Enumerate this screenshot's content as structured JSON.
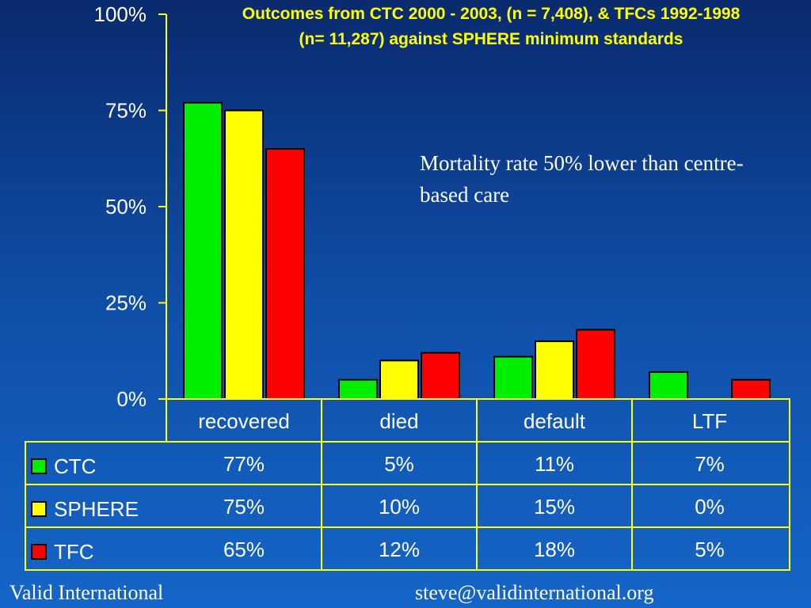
{
  "chart_data": {
    "type": "bar",
    "title_lines": [
      "Outcomes  from CTC 2000 - 2003,  (n = 7,408), & TFCs 1992-1998",
      "(n= 11,287) against SPHERE minimum standards"
    ],
    "categories": [
      "recovered",
      "died",
      "default",
      "LTF"
    ],
    "series": [
      {
        "name": "CTC",
        "color": "#00ee00",
        "values": [
          77,
          5,
          11,
          7
        ],
        "labels": [
          "77%",
          "5%",
          "11%",
          "7%"
        ]
      },
      {
        "name": "SPHERE",
        "color": "#ffff00",
        "values": [
          75,
          10,
          15,
          0
        ],
        "labels": [
          "75%",
          "10%",
          "15%",
          "0%"
        ]
      },
      {
        "name": "TFC",
        "color": "#ff0000",
        "values": [
          65,
          12,
          18,
          5
        ],
        "labels": [
          "65%",
          "12%",
          "18%",
          "5%"
        ]
      }
    ],
    "y_ticks": [
      {
        "value": 0,
        "label": "0%"
      },
      {
        "value": 25,
        "label": "25%"
      },
      {
        "value": 50,
        "label": "50%"
      },
      {
        "value": 75,
        "label": "75%"
      },
      {
        "value": 100,
        "label": "100%"
      }
    ],
    "ylim": [
      0,
      100
    ],
    "annotation": "Mortality rate 50% lower than centre-based care",
    "data_table": true,
    "grid": false
  },
  "footer": {
    "left": "Valid International",
    "right": "steve@validinternational.org"
  }
}
